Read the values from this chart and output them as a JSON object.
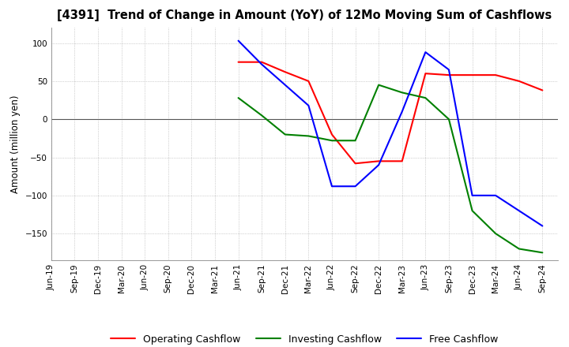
{
  "title": "[4391]  Trend of Change in Amount (YoY) of 12Mo Moving Sum of Cashflows",
  "ylabel": "Amount (million yen)",
  "x_labels": [
    "Jun-19",
    "Sep-19",
    "Dec-19",
    "Mar-20",
    "Jun-20",
    "Sep-20",
    "Dec-20",
    "Mar-21",
    "Jun-21",
    "Sep-21",
    "Dec-21",
    "Mar-22",
    "Jun-22",
    "Sep-22",
    "Dec-22",
    "Mar-23",
    "Jun-23",
    "Sep-23",
    "Dec-23",
    "Mar-24",
    "Jun-24",
    "Sep-24"
  ],
  "operating": [
    null,
    null,
    null,
    null,
    null,
    null,
    null,
    null,
    75,
    75,
    62,
    50,
    -20,
    -58,
    -55,
    -55,
    60,
    58,
    58,
    58,
    50,
    38
  ],
  "investing": [
    null,
    null,
    null,
    null,
    null,
    null,
    null,
    null,
    28,
    5,
    -20,
    -22,
    -28,
    -28,
    45,
    35,
    28,
    0,
    -120,
    -150,
    -170,
    -175
  ],
  "free": [
    null,
    null,
    null,
    null,
    null,
    null,
    null,
    null,
    103,
    72,
    45,
    18,
    -88,
    -88,
    -60,
    10,
    88,
    65,
    -100,
    -100,
    -120,
    -140
  ],
  "ylim": [
    -185,
    120
  ],
  "yticks": [
    -150,
    -100,
    -50,
    0,
    50,
    100
  ],
  "colors": {
    "operating": "#ff0000",
    "investing": "#008000",
    "free": "#0000ff"
  },
  "legend_labels": [
    "Operating Cashflow",
    "Investing Cashflow",
    "Free Cashflow"
  ],
  "grid_color": "#aaaaaa",
  "grid_style": "dotted",
  "background_color": "#ffffff",
  "zero_line_color": "#555555"
}
